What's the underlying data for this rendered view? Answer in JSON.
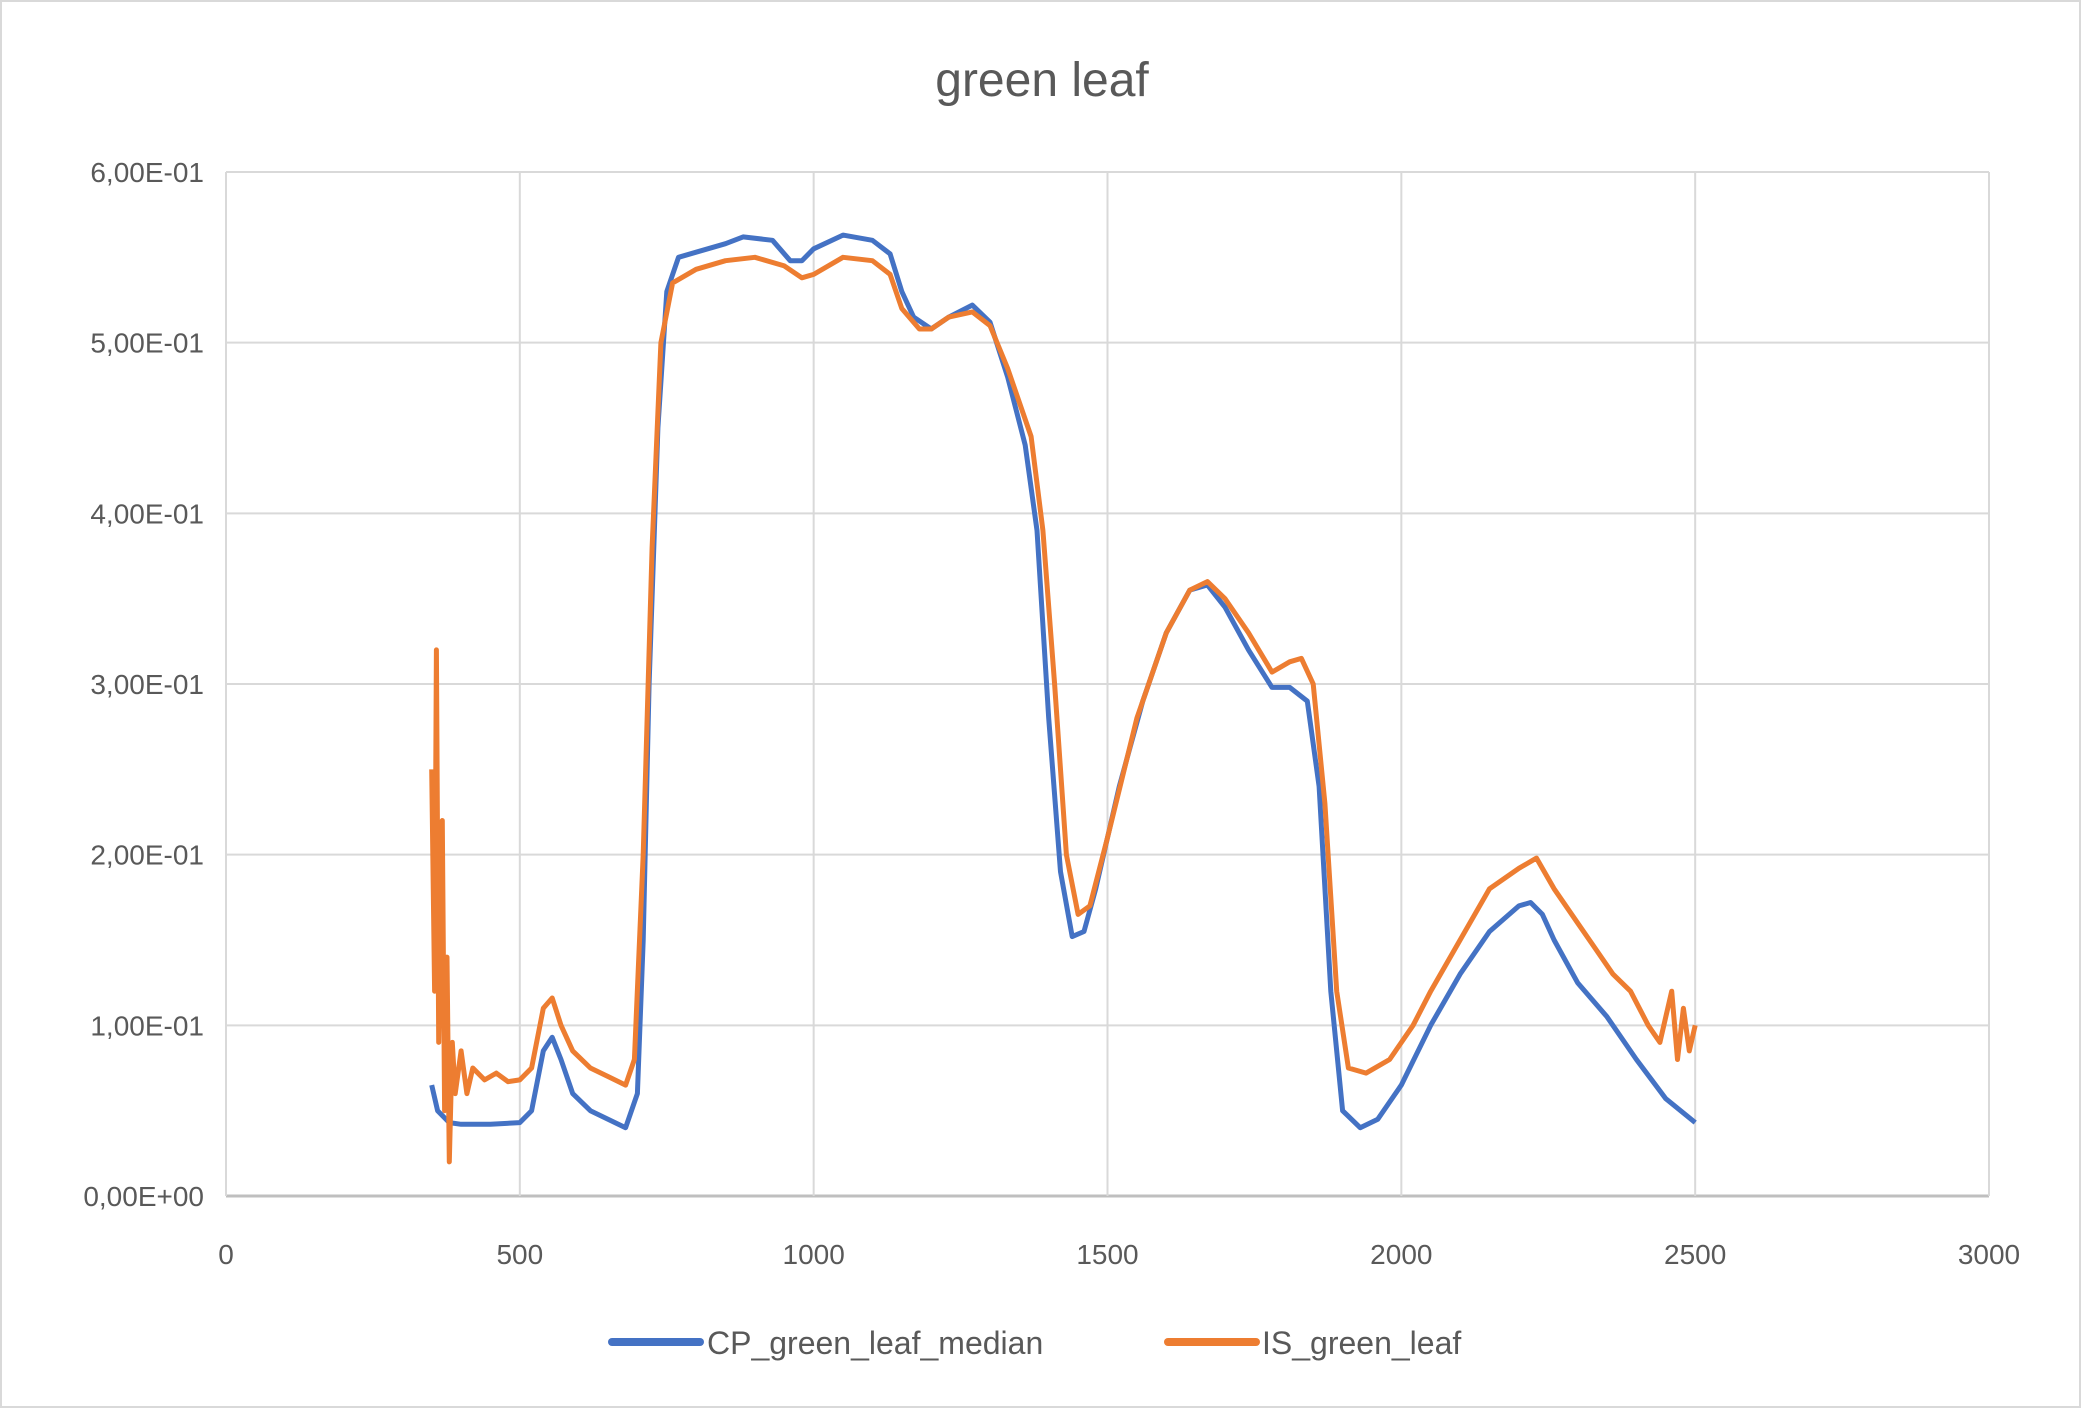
{
  "chart_data": {
    "type": "line",
    "title": "green leaf",
    "xlabel": "",
    "ylabel": "",
    "xlim": [
      0,
      3000
    ],
    "ylim": [
      0,
      0.6
    ],
    "x_ticks": [
      "0",
      "500",
      "1000",
      "1500",
      "2000",
      "2500",
      "3000"
    ],
    "x_tick_values": [
      0,
      500,
      1000,
      1500,
      2000,
      2500,
      3000
    ],
    "y_ticks": [
      "0,00E+00",
      "1,00E-01",
      "2,00E-01",
      "3,00E-01",
      "4,00E-01",
      "5,00E-01",
      "6,00E-01"
    ],
    "y_tick_values": [
      0,
      0.1,
      0.2,
      0.3,
      0.4,
      0.5,
      0.6
    ],
    "grid": true,
    "legend_position": "bottom",
    "series": [
      {
        "name": "CP_green_leaf_median",
        "color": "#4472C4",
        "x": [
          350,
          360,
          380,
          400,
          450,
          500,
          520,
          540,
          555,
          570,
          590,
          620,
          650,
          680,
          700,
          710,
          720,
          735,
          750,
          770,
          800,
          850,
          880,
          930,
          960,
          980,
          1000,
          1050,
          1100,
          1130,
          1150,
          1170,
          1200,
          1230,
          1270,
          1300,
          1330,
          1360,
          1380,
          1400,
          1420,
          1440,
          1460,
          1480,
          1520,
          1560,
          1600,
          1640,
          1670,
          1700,
          1740,
          1780,
          1810,
          1840,
          1860,
          1880,
          1900,
          1930,
          1960,
          2000,
          2050,
          2100,
          2150,
          2200,
          2220,
          2240,
          2260,
          2300,
          2350,
          2400,
          2450,
          2500
        ],
        "y": [
          0.065,
          0.05,
          0.043,
          0.042,
          0.042,
          0.043,
          0.05,
          0.085,
          0.093,
          0.08,
          0.06,
          0.05,
          0.045,
          0.04,
          0.06,
          0.15,
          0.3,
          0.45,
          0.53,
          0.55,
          0.553,
          0.558,
          0.562,
          0.56,
          0.548,
          0.548,
          0.555,
          0.563,
          0.56,
          0.552,
          0.53,
          0.515,
          0.508,
          0.515,
          0.522,
          0.512,
          0.48,
          0.44,
          0.39,
          0.28,
          0.19,
          0.152,
          0.155,
          0.18,
          0.24,
          0.29,
          0.33,
          0.355,
          0.358,
          0.345,
          0.32,
          0.298,
          0.298,
          0.29,
          0.24,
          0.12,
          0.05,
          0.04,
          0.045,
          0.065,
          0.1,
          0.13,
          0.155,
          0.17,
          0.172,
          0.165,
          0.15,
          0.125,
          0.105,
          0.08,
          0.057,
          0.043
        ]
      },
      {
        "name": "IS_green_leaf",
        "color": "#ED7D31",
        "x": [
          350,
          355,
          358,
          362,
          368,
          372,
          376,
          380,
          385,
          390,
          400,
          410,
          420,
          440,
          460,
          480,
          500,
          520,
          540,
          555,
          570,
          590,
          620,
          650,
          680,
          695,
          710,
          725,
          740,
          760,
          800,
          850,
          900,
          950,
          980,
          1000,
          1050,
          1100,
          1130,
          1150,
          1180,
          1200,
          1230,
          1270,
          1300,
          1330,
          1370,
          1390,
          1410,
          1430,
          1450,
          1470,
          1500,
          1550,
          1600,
          1640,
          1670,
          1700,
          1740,
          1780,
          1810,
          1830,
          1850,
          1870,
          1890,
          1910,
          1940,
          1980,
          2020,
          2050,
          2100,
          2150,
          2200,
          2230,
          2260,
          2300,
          2330,
          2360,
          2390,
          2420,
          2440,
          2460,
          2470,
          2480,
          2490,
          2500
        ],
        "y": [
          0.25,
          0.12,
          0.32,
          0.09,
          0.22,
          0.05,
          0.14,
          0.02,
          0.09,
          0.06,
          0.085,
          0.06,
          0.075,
          0.068,
          0.072,
          0.067,
          0.068,
          0.075,
          0.11,
          0.116,
          0.1,
          0.085,
          0.075,
          0.07,
          0.065,
          0.08,
          0.2,
          0.38,
          0.5,
          0.535,
          0.543,
          0.548,
          0.55,
          0.545,
          0.538,
          0.54,
          0.55,
          0.548,
          0.54,
          0.52,
          0.508,
          0.508,
          0.515,
          0.518,
          0.51,
          0.485,
          0.445,
          0.39,
          0.3,
          0.2,
          0.165,
          0.17,
          0.21,
          0.28,
          0.33,
          0.355,
          0.36,
          0.35,
          0.33,
          0.307,
          0.313,
          0.315,
          0.3,
          0.23,
          0.12,
          0.075,
          0.072,
          0.08,
          0.1,
          0.12,
          0.15,
          0.18,
          0.192,
          0.198,
          0.18,
          0.16,
          0.145,
          0.13,
          0.12,
          0.1,
          0.09,
          0.12,
          0.08,
          0.11,
          0.085,
          0.1
        ]
      }
    ]
  }
}
